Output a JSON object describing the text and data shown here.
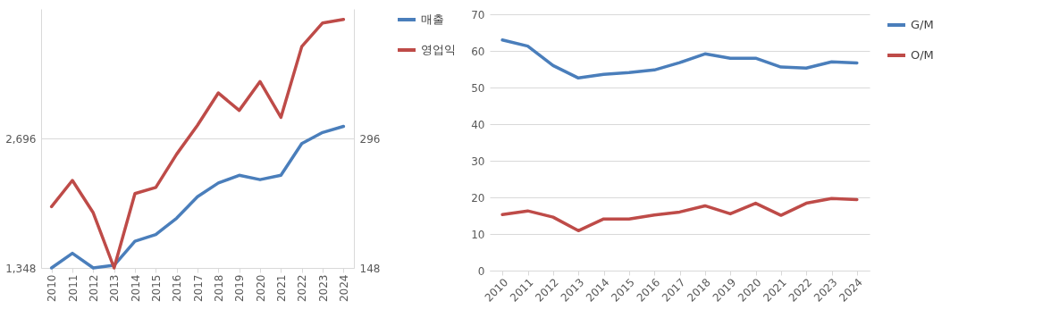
{
  "chart_data": [
    {
      "type": "line",
      "categories": [
        "2010",
        "2011",
        "2012",
        "2013",
        "2014",
        "2015",
        "2016",
        "2017",
        "2018",
        "2019",
        "2020",
        "2021",
        "2022",
        "2023",
        "2024"
      ],
      "series": [
        {
          "name": "매출",
          "color": "#4a7ebb",
          "values": [
            1348,
            1500,
            1348,
            1375,
            1625,
            1696,
            1866,
            2089,
            2232,
            2312,
            2267,
            2312,
            2642,
            2758,
            2821
          ]
        },
        {
          "name": "영업익",
          "color": "#be4b48",
          "axis": "y2",
          "values": [
            218,
            248,
            211,
            148,
            233,
            240,
            278,
            311,
            348,
            328,
            361,
            320,
            401,
            428,
            432
          ]
        }
      ],
      "ylim": [
        1348,
        4044
      ],
      "yticks": [
        {
          "value": 1348,
          "label": "1,348"
        },
        {
          "value": 2696,
          "label": "2,696"
        }
      ],
      "y2lim": [
        148,
        444
      ],
      "y2ticks": [
        148,
        296
      ],
      "grid": "y",
      "legend": "right"
    },
    {
      "type": "line",
      "categories": [
        "2010",
        "2011",
        "2012",
        "2013",
        "2014",
        "2015",
        "2016",
        "2017",
        "2018",
        "2019",
        "2020",
        "2021",
        "2022",
        "2023",
        "2024"
      ],
      "series": [
        {
          "name": "G/M",
          "color": "#4a7ebb",
          "values": [
            63,
            61.3,
            56,
            52.6,
            53.6,
            54.1,
            54.8,
            56.8,
            59.2,
            58,
            58,
            55.6,
            55.3,
            57,
            56.7
          ]
        },
        {
          "name": "O/M",
          "color": "#be4b48",
          "values": [
            15.3,
            16.3,
            14.6,
            10.9,
            14.1,
            14.1,
            15.2,
            16,
            17.7,
            15.5,
            18.4,
            15.1,
            18.4,
            19.7,
            19.4
          ]
        }
      ],
      "ylim": [
        0,
        70
      ],
      "yticks": [
        0,
        10,
        20,
        30,
        40,
        50,
        60,
        70
      ],
      "grid": "y",
      "legend": "right"
    }
  ]
}
